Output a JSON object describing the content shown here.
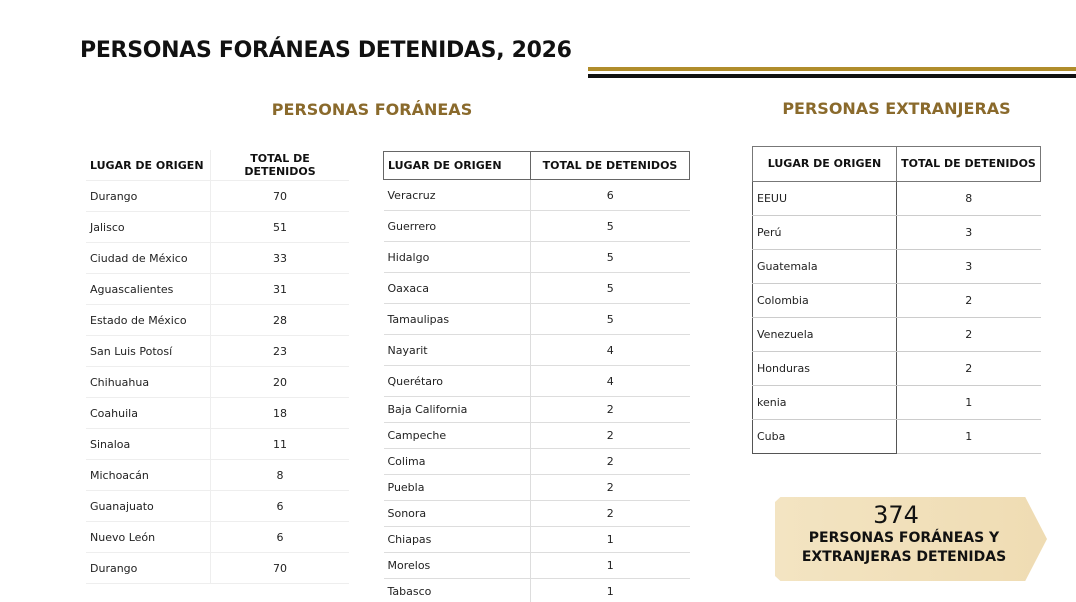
{
  "header": {
    "title": "PERSONAS FORÁNEAS DETENIDAS, 2026"
  },
  "foraneas": {
    "heading": "PERSONAS FORÁNEAS",
    "table_a": {
      "header": [
        "LUGAR DE ORIGEN",
        "TOTAL DE DETENIDOS"
      ],
      "rows": [
        [
          "Durango",
          70
        ],
        [
          "Jalisco",
          51
        ],
        [
          "Ciudad de México",
          33
        ],
        [
          "Aguascalientes",
          31
        ],
        [
          "Estado de México",
          28
        ],
        [
          "San Luis Potosí",
          23
        ],
        [
          "Chihuahua",
          20
        ],
        [
          "Coahuila",
          18
        ],
        [
          "Sinaloa",
          11
        ],
        [
          "Michoacán",
          8
        ],
        [
          "Guanajuato",
          6
        ],
        [
          "Nuevo León",
          6
        ],
        [
          "Durango",
          70
        ]
      ]
    },
    "table_b": {
      "header": [
        "LUGAR DE ORIGEN",
        "TOTAL DE DETENIDOS"
      ],
      "rows": [
        [
          "Veracruz",
          6
        ],
        [
          "Guerrero",
          5
        ],
        [
          "Hidalgo",
          5
        ],
        [
          "Oaxaca",
          5
        ],
        [
          "Tamaulipas",
          5
        ],
        [
          "Nayarit",
          4
        ],
        [
          "Querétaro",
          4
        ],
        [
          "Baja California",
          2
        ],
        [
          "Campeche",
          2
        ],
        [
          "Colima",
          2
        ],
        [
          "Puebla",
          2
        ],
        [
          "Sonora",
          2
        ],
        [
          "Chiapas",
          1
        ],
        [
          "Morelos",
          1
        ],
        [
          "Tabasco",
          1
        ]
      ]
    }
  },
  "extranjeras": {
    "heading": "PERSONAS EXTRANJERAS",
    "table": {
      "header": [
        "LUGAR DE ORIGEN",
        "TOTAL DE DETENIDOS"
      ],
      "rows": [
        [
          "EEUU",
          8
        ],
        [
          "Perú",
          3
        ],
        [
          "Guatemala",
          3
        ],
        [
          "Colombia",
          2
        ],
        [
          "Venezuela",
          2
        ],
        [
          "Honduras",
          2
        ],
        [
          "kenia",
          1
        ],
        [
          "Cuba",
          1
        ]
      ]
    }
  },
  "summary": {
    "total": 374,
    "lines": [
      "PERSONAS FORÁNEAS Y",
      "EXTRANJERAS DETENIDAS"
    ]
  }
}
